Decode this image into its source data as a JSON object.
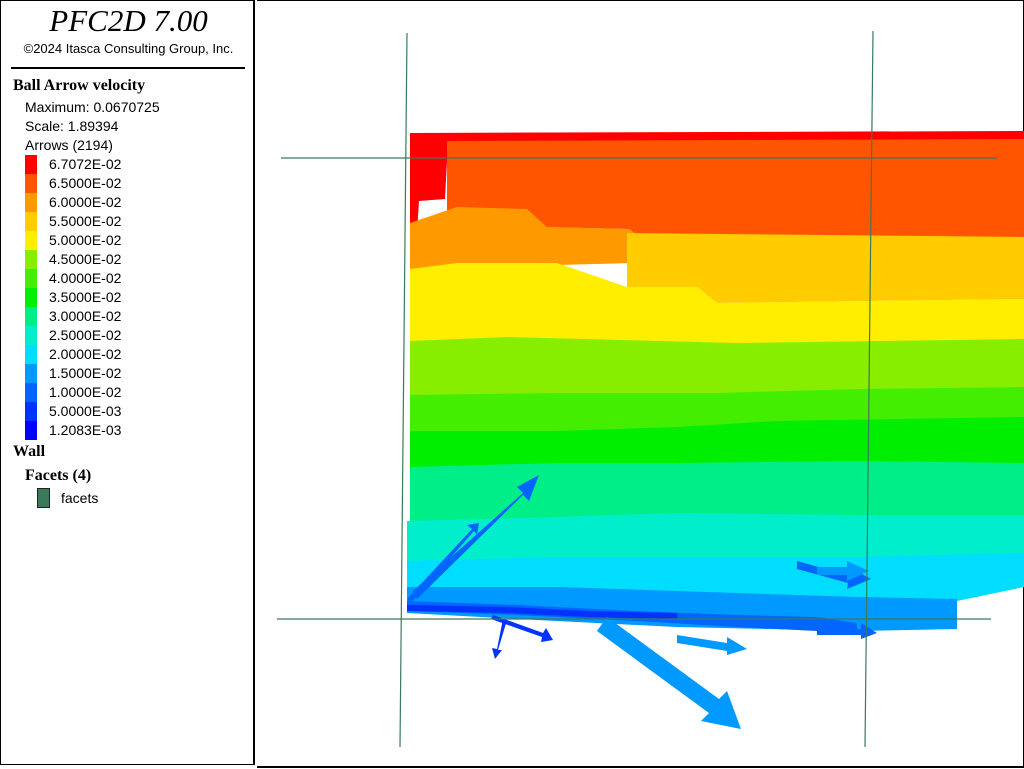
{
  "header": {
    "app_title": "PFC2D 7.00",
    "copyright": "©2024 Itasca Consulting Group, Inc."
  },
  "ball_arrow": {
    "heading": "Ball Arrow velocity",
    "maximum": "Maximum: 0.0670725",
    "scale": "Scale: 1.89394",
    "arrows": "Arrows (2194)",
    "ramp": [
      {
        "label": "6.7072E-02",
        "color": "#ff0000"
      },
      {
        "label": "6.5000E-02",
        "color": "#ff5500"
      },
      {
        "label": "6.0000E-02",
        "color": "#ff9900"
      },
      {
        "label": "5.5000E-02",
        "color": "#ffcc00"
      },
      {
        "label": "5.0000E-02",
        "color": "#ffee00"
      },
      {
        "label": "4.5000E-02",
        "color": "#88ee00"
      },
      {
        "label": "4.0000E-02",
        "color": "#44ee00"
      },
      {
        "label": "3.5000E-02",
        "color": "#00ee00"
      },
      {
        "label": "3.0000E-02",
        "color": "#00ee88"
      },
      {
        "label": "2.5000E-02",
        "color": "#00eecc"
      },
      {
        "label": "2.0000E-02",
        "color": "#00ddff"
      },
      {
        "label": "1.5000E-02",
        "color": "#0099ff"
      },
      {
        "label": "1.0000E-02",
        "color": "#0066ff"
      },
      {
        "label": "5.0000E-03",
        "color": "#0033ff"
      },
      {
        "label": "1.2083E-03",
        "color": "#0000ff"
      }
    ]
  },
  "wall": {
    "heading": "Wall",
    "facets_heading": "Facets (4)",
    "facets_label": "facets",
    "facets_color": "#3a7a5a"
  },
  "plot": {
    "wall_color": "#3a7a5a"
  }
}
